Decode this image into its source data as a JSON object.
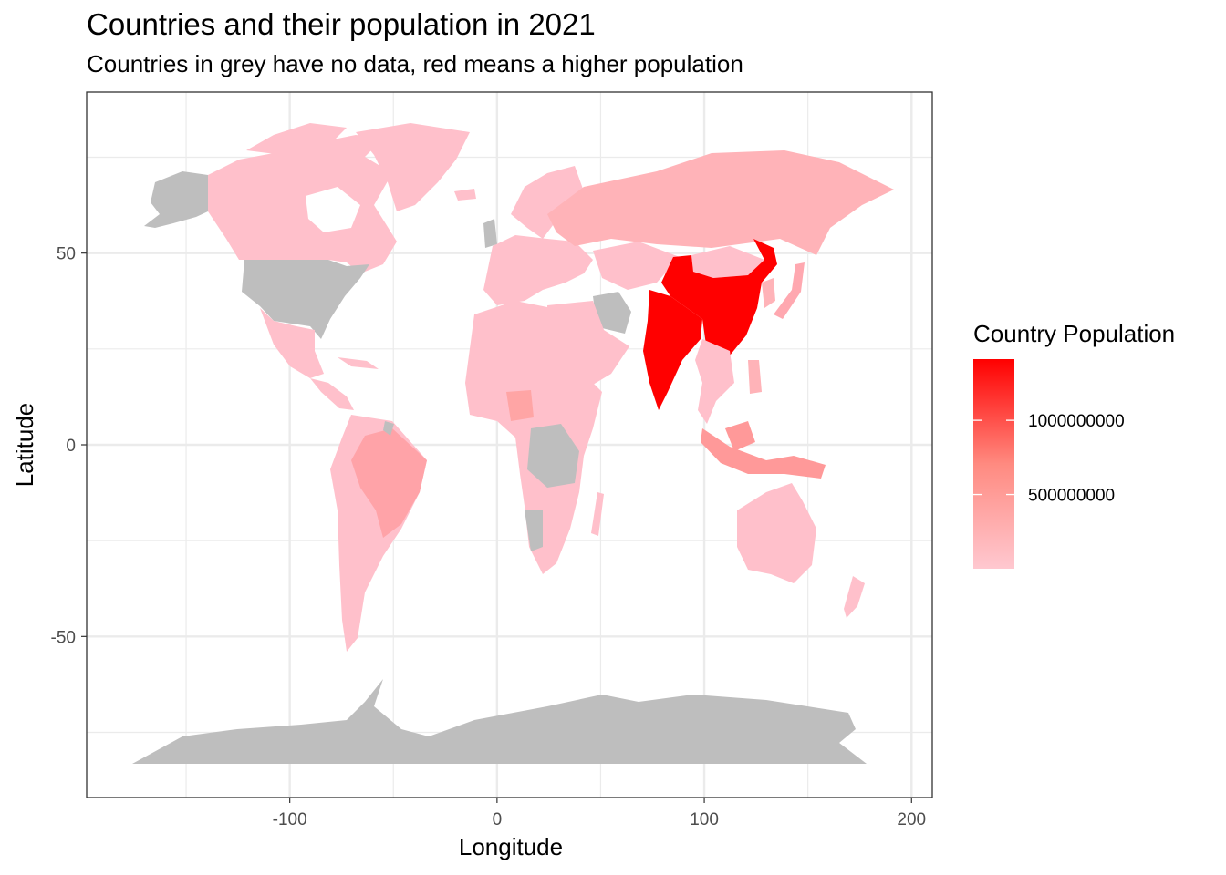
{
  "title": "Countries and their population in 2021",
  "subtitle": "Countries in grey have no data, red means a higher population",
  "colors": {
    "no_data": "#bebebe",
    "low": "#ffc0cb",
    "high": "#ff0000",
    "panel_grid": "#ebebeb"
  },
  "chart_data": {
    "type": "choropleth",
    "xlabel": "Longitude",
    "ylabel": "Latitude",
    "xlim": [
      -198,
      210
    ],
    "ylim": [
      -92,
      92
    ],
    "x_ticks": [
      -100,
      0,
      100,
      200
    ],
    "x_tick_labels": [
      "-100",
      "0",
      "100",
      "200"
    ],
    "y_ticks": [
      -50,
      0,
      50
    ],
    "y_tick_labels": [
      "-50",
      "0",
      "50"
    ],
    "grid": true,
    "legend": {
      "title": "Country Population",
      "position": "right",
      "range": [
        0,
        1412000000
      ],
      "breaks": [
        500000000,
        1000000000
      ],
      "break_labels": [
        "500000000",
        "1000000000"
      ]
    },
    "regions": [
      {
        "name": "China",
        "population": 1412000000
      },
      {
        "name": "India",
        "population": 1393000000
      },
      {
        "name": "Indonesia",
        "population": 276000000
      },
      {
        "name": "Brazil",
        "population": 214000000
      },
      {
        "name": "Nigeria",
        "population": 211000000
      },
      {
        "name": "Russia",
        "population": 143000000
      },
      {
        "name": "Mexico",
        "population": 130000000
      },
      {
        "name": "Japan",
        "population": 125000000
      },
      {
        "name": "Canada",
        "population": 38000000
      },
      {
        "name": "Australia",
        "population": 26000000
      },
      {
        "name": "United States",
        "population": null
      },
      {
        "name": "Alaska",
        "population": null
      },
      {
        "name": "Antarctica",
        "population": null
      },
      {
        "name": "Iran",
        "population": null
      },
      {
        "name": "DR Congo",
        "population": null
      },
      {
        "name": "Namibia",
        "population": null
      }
    ]
  }
}
